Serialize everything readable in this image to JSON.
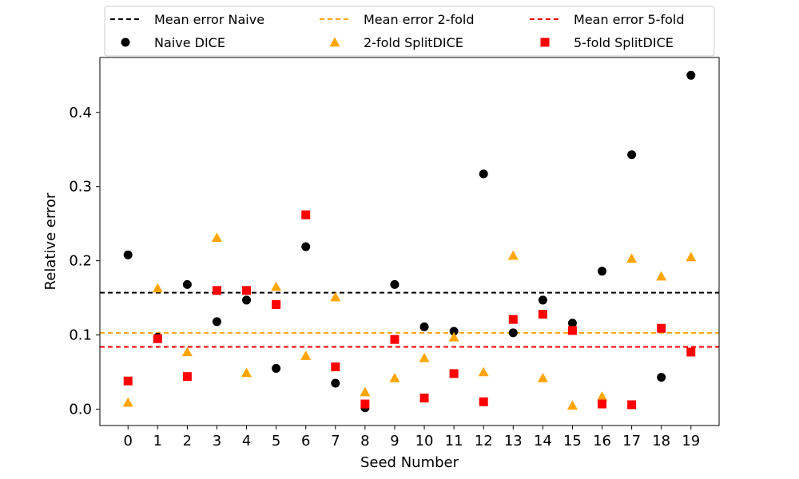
{
  "chart_data": {
    "type": "scatter",
    "xlabel": "Seed Number",
    "ylabel": "Relative error",
    "xlim": [
      -0.95,
      19.95
    ],
    "ylim": [
      -0.022,
      0.474
    ],
    "x_ticks": [
      0,
      1,
      2,
      3,
      4,
      5,
      6,
      7,
      8,
      9,
      10,
      11,
      12,
      13,
      14,
      15,
      16,
      17,
      18,
      19
    ],
    "y_ticks": [
      0.0,
      0.1,
      0.2,
      0.3,
      0.4
    ],
    "y_tick_labels": [
      "0.0",
      "0.1",
      "0.2",
      "0.3",
      "0.4"
    ],
    "grid": false,
    "legend_position": "top-center",
    "series": [
      {
        "name": "Naive DICE",
        "marker": "circle",
        "color": "#000000",
        "x": [
          0,
          1,
          2,
          3,
          4,
          5,
          6,
          7,
          8,
          9,
          10,
          11,
          12,
          13,
          14,
          15,
          16,
          17,
          18,
          19
        ],
        "y": [
          0.208,
          0.097,
          0.168,
          0.118,
          0.147,
          0.055,
          0.219,
          0.035,
          0.002,
          0.168,
          0.111,
          0.105,
          0.317,
          0.103,
          0.147,
          0.116,
          0.186,
          0.343,
          0.043,
          0.45
        ]
      },
      {
        "name": "2-fold SplitDICE",
        "marker": "triangle",
        "color": "#FFA500",
        "x": [
          0,
          1,
          2,
          3,
          4,
          5,
          6,
          7,
          8,
          9,
          10,
          11,
          12,
          13,
          14,
          15,
          16,
          17,
          18,
          19
        ],
        "y": [
          0.009,
          0.163,
          0.077,
          0.231,
          0.049,
          0.165,
          0.072,
          0.151,
          0.023,
          0.042,
          0.069,
          0.097,
          0.05,
          0.207,
          0.042,
          0.005,
          0.017,
          0.203,
          0.179,
          0.205
        ]
      },
      {
        "name": "5-fold SplitDICE",
        "marker": "square",
        "color": "#FF0000",
        "x": [
          0,
          1,
          2,
          3,
          4,
          5,
          6,
          7,
          8,
          9,
          10,
          11,
          12,
          13,
          14,
          15,
          16,
          17,
          18,
          19
        ],
        "y": [
          0.038,
          0.095,
          0.044,
          0.16,
          0.16,
          0.141,
          0.262,
          0.057,
          0.007,
          0.094,
          0.015,
          0.048,
          0.01,
          0.121,
          0.128,
          0.106,
          0.007,
          0.006,
          0.109,
          0.077
        ]
      }
    ],
    "reference_lines": [
      {
        "name": "Mean error Naive",
        "y": 0.157,
        "color": "#000000",
        "style": "dashed"
      },
      {
        "name": "Mean error 2-fold",
        "y": 0.103,
        "color": "#FFA500",
        "style": "dashed"
      },
      {
        "name": "Mean error 5-fold",
        "y": 0.084,
        "color": "#FF0000",
        "style": "dashed"
      }
    ],
    "legend_entries": [
      {
        "label": "Mean error Naive",
        "kind": "line",
        "color": "#000000"
      },
      {
        "label": "Mean error 2-fold",
        "kind": "line",
        "color": "#FFA500"
      },
      {
        "label": "Mean error 5-fold",
        "kind": "line",
        "color": "#FF0000"
      },
      {
        "label": "Naive DICE",
        "kind": "circle",
        "color": "#000000"
      },
      {
        "label": "2-fold SplitDICE",
        "kind": "triangle",
        "color": "#FFA500"
      },
      {
        "label": "5-fold SplitDICE",
        "kind": "square",
        "color": "#FF0000"
      }
    ]
  }
}
